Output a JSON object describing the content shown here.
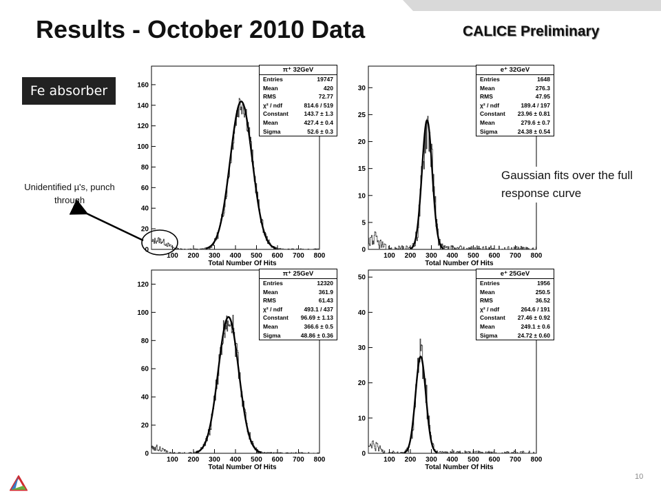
{
  "slide": {
    "title": "Results - October 2010 Data",
    "preliminary": "CALICE Preliminary",
    "badge": "Fe absorber",
    "note_left": "Unidentified µ's, punch through",
    "note_right": "Gaussian fits over the full response curve",
    "page_number": "10"
  },
  "colors": {
    "band": "#d9d9d9",
    "badge_bg": "#222222",
    "curve": "#000000",
    "logo_red": "#d22a2e",
    "logo_blue": "#3a7dc4",
    "logo_green": "#6cae3e"
  },
  "icons": {
    "logo": "argonne-logo-icon",
    "arrow": "annotation-arrow-icon",
    "circle": "highlight-circle-icon"
  },
  "chart_data": [
    {
      "type": "histogram",
      "stats_title": "π⁺ 32GeV",
      "xlabel": "Total Number Of Hits",
      "xlim": [
        0,
        800
      ],
      "ylim": [
        0,
        178
      ],
      "xticks": [
        "100",
        "200",
        "300",
        "400",
        "500",
        "600",
        "700",
        "800"
      ],
      "yticks": [
        "0",
        "20",
        "40",
        "60",
        "80",
        "100",
        "120",
        "140",
        "160"
      ],
      "gaussian": {
        "constant": 143.7,
        "mean": 427.4,
        "sigma": 52.6
      },
      "low_bump": {
        "center": 30,
        "height": 9,
        "width": 40
      },
      "stats": [
        [
          "Entries",
          "19747"
        ],
        [
          "Mean",
          "420"
        ],
        [
          "RMS",
          "72.77"
        ],
        [
          "χ² / ndf",
          "814.6 / 519"
        ],
        [
          "Constant",
          "143.7 ± 1.3"
        ],
        [
          "Mean",
          "427.4 ± 0.4"
        ],
        [
          "Sigma",
          "52.6 ± 0.3"
        ]
      ]
    },
    {
      "type": "histogram",
      "stats_title": "e⁺ 32GeV",
      "xlabel": "Total Number Of Hits",
      "xlim": [
        0,
        800
      ],
      "ylim": [
        0,
        34
      ],
      "xticks": [
        "100",
        "200",
        "300",
        "400",
        "500",
        "600",
        "700",
        "800"
      ],
      "yticks": [
        "0",
        "5",
        "10",
        "15",
        "20",
        "25",
        "30"
      ],
      "gaussian": {
        "constant": 23.96,
        "mean": 279.6,
        "sigma": 24.38
      },
      "low_bump": {
        "center": 20,
        "height": 2,
        "width": 30
      },
      "stats": [
        [
          "Entries",
          "1648"
        ],
        [
          "Mean",
          "276.3"
        ],
        [
          "RMS",
          "47.95"
        ],
        [
          "χ² / ndf",
          "189.4 / 197"
        ],
        [
          "Constant",
          "23.96 ± 0.81"
        ],
        [
          "Mean",
          "279.6 ± 0.7"
        ],
        [
          "Sigma",
          "24.38 ± 0.54"
        ]
      ]
    },
    {
      "type": "histogram",
      "stats_title": "π⁺ 25GeV",
      "xlabel": "Total Number Of Hits",
      "xlim": [
        0,
        800
      ],
      "ylim": [
        0,
        130
      ],
      "xticks": [
        "100",
        "200",
        "300",
        "400",
        "500",
        "600",
        "700",
        "800"
      ],
      "yticks": [
        "0",
        "20",
        "40",
        "60",
        "80",
        "100",
        "120"
      ],
      "gaussian": {
        "constant": 96.69,
        "mean": 366.6,
        "sigma": 48.86
      },
      "low_bump": {
        "center": 20,
        "height": 4,
        "width": 30
      },
      "stats": [
        [
          "Entries",
          "12320"
        ],
        [
          "Mean",
          "361.9"
        ],
        [
          "RMS",
          "61.43"
        ],
        [
          "χ² / ndf",
          "493.1 / 437"
        ],
        [
          "Constant",
          "96.69 ± 1.13"
        ],
        [
          "Mean",
          "366.6 ± 0.5"
        ],
        [
          "Sigma",
          "48.86 ± 0.36"
        ]
      ]
    },
    {
      "type": "histogram",
      "stats_title": "e⁺ 25GeV",
      "xlabel": "Total Number Of Hits",
      "xlim": [
        0,
        800
      ],
      "ylim": [
        0,
        52
      ],
      "xticks": [
        "100",
        "200",
        "300",
        "400",
        "500",
        "600",
        "700",
        "800"
      ],
      "yticks": [
        "0",
        "10",
        "20",
        "30",
        "40",
        "50"
      ],
      "gaussian": {
        "constant": 27.46,
        "mean": 249.1,
        "sigma": 24.72
      },
      "low_bump": {
        "center": 20,
        "height": 2,
        "width": 30
      },
      "stats": [
        [
          "Entries",
          "1956"
        ],
        [
          "Mean",
          "250.5"
        ],
        [
          "RMS",
          "36.52"
        ],
        [
          "χ² / ndf",
          "264.6 / 191"
        ],
        [
          "Constant",
          "27.46 ± 0.92"
        ],
        [
          "Mean",
          "249.1 ± 0.6"
        ],
        [
          "Sigma",
          "24.72 ± 0.60"
        ]
      ]
    }
  ]
}
